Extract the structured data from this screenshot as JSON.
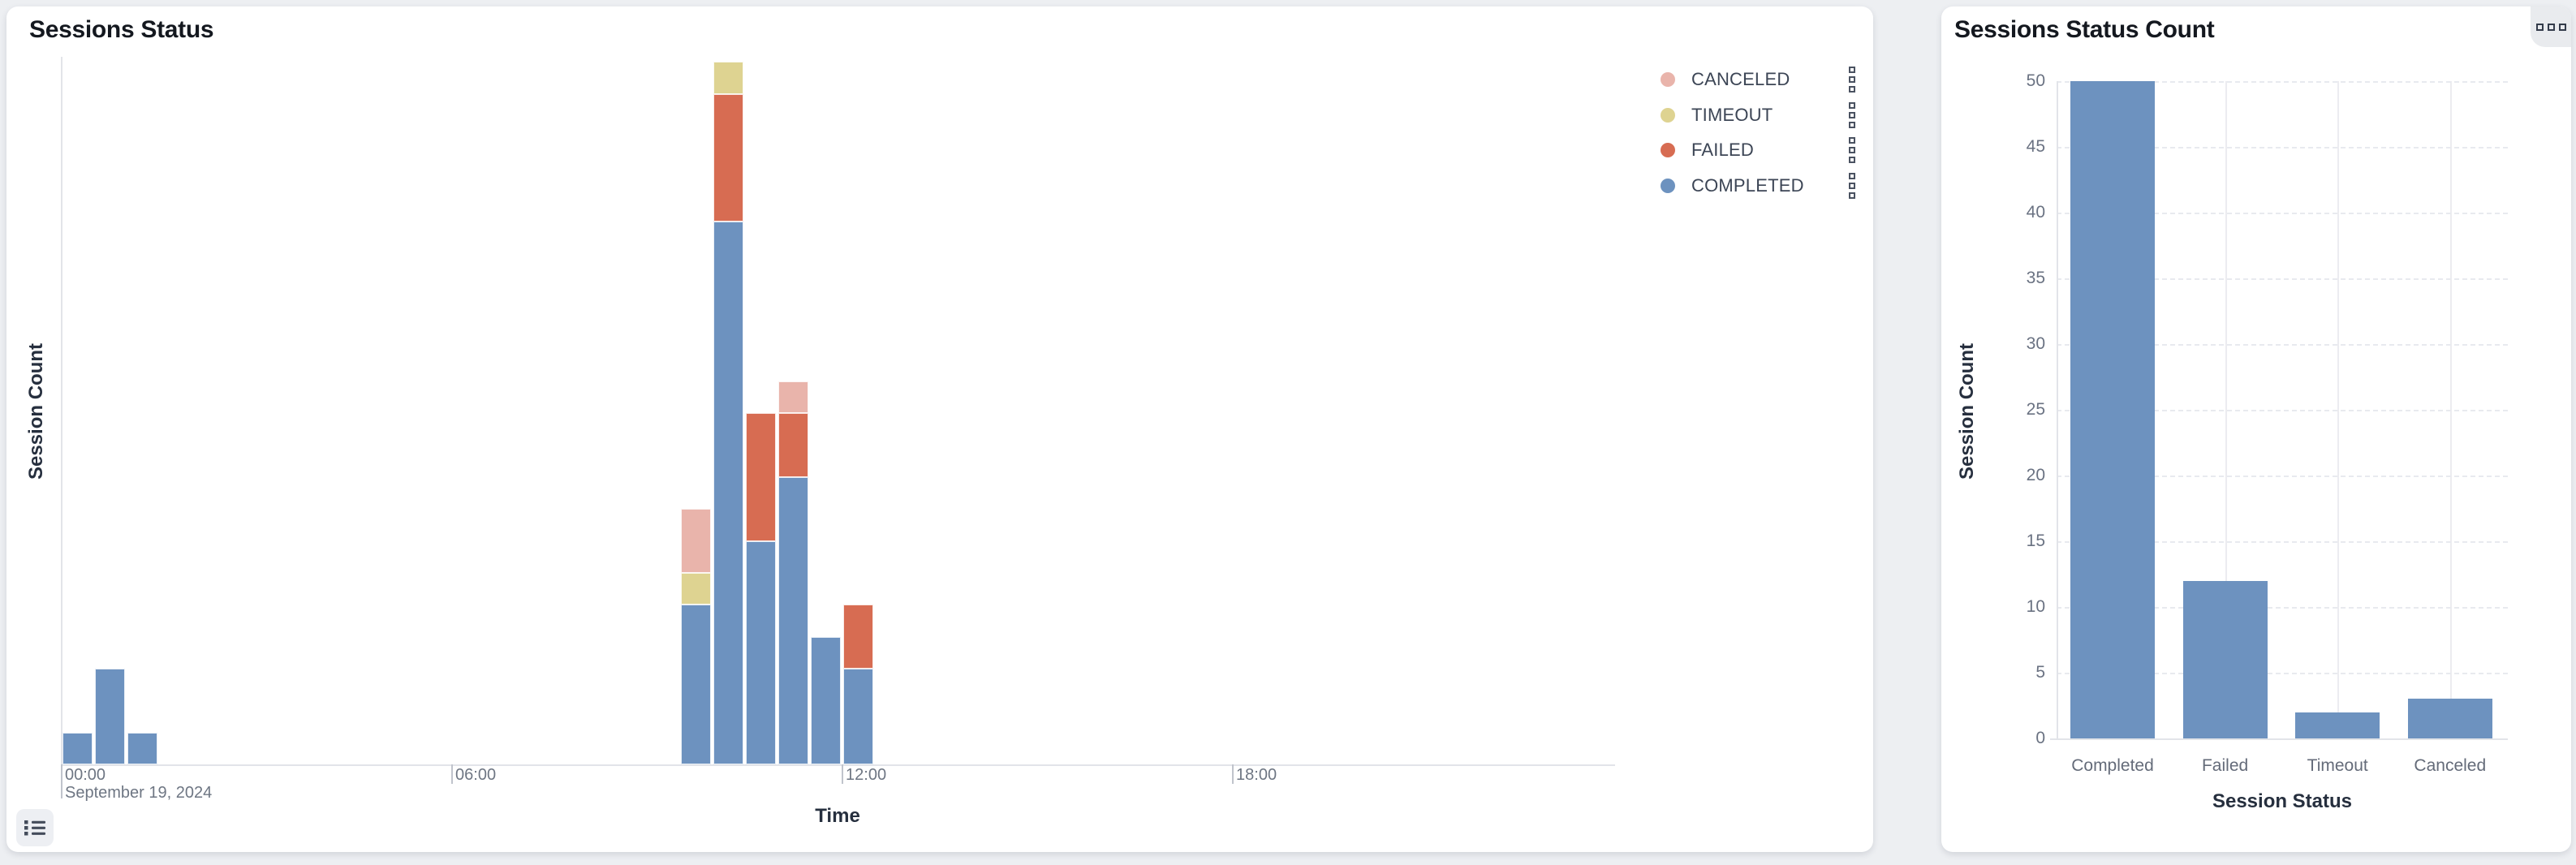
{
  "page": {
    "background": "#edeff2"
  },
  "icons": {
    "legend_menu_icon": "kebab-three-squares-vertical",
    "panel_menu_icon": "three-squares-horizontal",
    "bottom_button_icon": "unordered-list-icon"
  },
  "left_panel": {
    "title": "Sessions Status",
    "xlabel": "Time",
    "ylabel": "Session Count",
    "date_annotation": "September 19, 2024"
  },
  "right_panel": {
    "title": "Sessions Status Count",
    "xlabel": "Session Status",
    "ylabel": "Session Count"
  },
  "chart_data": [
    {
      "type": "bar",
      "stacked": true,
      "title": "Sessions Status",
      "xlabel": "Time",
      "ylabel": "Session Count",
      "x_unit": "30-minute time slots on September 19, 2024",
      "x_ticks": [
        {
          "label": "00:00",
          "hour": 0,
          "sub_label": "September 19, 2024"
        },
        {
          "label": "06:00",
          "hour": 6
        },
        {
          "label": "12:00",
          "hour": 12
        },
        {
          "label": "18:00",
          "hour": 18
        }
      ],
      "legend_position": "top-right",
      "series": [
        {
          "name": "CANCELED",
          "color": "#e9b4ab",
          "points": [
            {
              "t": "09:30",
              "v": 2
            },
            {
              "t": "11:00",
              "v": 1
            }
          ]
        },
        {
          "name": "TIMEOUT",
          "color": "#ded391",
          "points": [
            {
              "t": "09:30",
              "v": 1
            },
            {
              "t": "10:00",
              "v": 1
            }
          ]
        },
        {
          "name": "FAILED",
          "color": "#d76c52",
          "points": [
            {
              "t": "10:00",
              "v": 4
            },
            {
              "t": "10:30",
              "v": 4
            },
            {
              "t": "11:00",
              "v": 2
            },
            {
              "t": "12:00",
              "v": 2
            }
          ]
        },
        {
          "name": "COMPLETED",
          "color": "#6d92bf",
          "points": [
            {
              "t": "00:00",
              "v": 1
            },
            {
              "t": "00:30",
              "v": 3
            },
            {
              "t": "01:00",
              "v": 1
            },
            {
              "t": "09:30",
              "v": 5
            },
            {
              "t": "10:00",
              "v": 17
            },
            {
              "t": "10:30",
              "v": 7
            },
            {
              "t": "11:00",
              "v": 9
            },
            {
              "t": "11:30",
              "v": 4
            },
            {
              "t": "12:00",
              "v": 3
            }
          ]
        }
      ],
      "stack_order_bottom_to_top": [
        "COMPLETED",
        "FAILED",
        "TIMEOUT",
        "CANCELED"
      ]
    },
    {
      "type": "bar",
      "title": "Sessions Status Count",
      "categories": [
        "Completed",
        "Failed",
        "Timeout",
        "Canceled"
      ],
      "values": [
        50,
        12,
        2,
        3
      ],
      "bar_color": "#6d92bf",
      "xlabel": "Session Status",
      "ylabel": "Session Count",
      "ylim": [
        0,
        50
      ],
      "yticks": [
        0,
        5,
        10,
        15,
        20,
        25,
        30,
        35,
        40,
        45,
        50
      ],
      "grid": "dashed horizontal at each ytick, solid vertical at category centers",
      "legend": "none"
    }
  ]
}
